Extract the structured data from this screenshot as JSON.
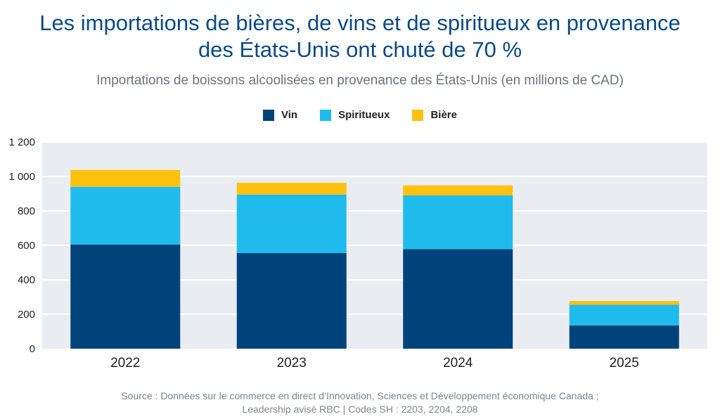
{
  "title_line1": "Les importations de bières, de vins et de spiritueux en provenance",
  "title_line2": "des États-Unis ont chuté de 70 %",
  "subtitle": "Importations de boissons alcoolisées en provenance des États-Unis (en millions de CAD)",
  "source_line1": "Source : Données sur le commerce en direct d’Innovation, Sciences et Développement économique Canada ;",
  "source_line2": "Leadership avisé RBC | Codes SH : 2203, 2204, 2208",
  "colors": {
    "vin": "#00437a",
    "spiritueux": "#20bbed",
    "biere": "#fec20e",
    "plot_bg": "#e9edf1",
    "grid": "#ffffff"
  },
  "chart_data": {
    "type": "bar",
    "stacked": true,
    "categories": [
      "2022",
      "2023",
      "2024",
      "2025"
    ],
    "series": [
      {
        "name": "Vin",
        "values": [
          605,
          555,
          578,
          135
        ]
      },
      {
        "name": "Spiritueux",
        "values": [
          335,
          340,
          312,
          120
        ]
      },
      {
        "name": "Bière",
        "values": [
          98,
          68,
          58,
          22
        ]
      }
    ],
    "yticks": [
      "0",
      "200",
      "400",
      "600",
      "800",
      "1 000",
      "1 200"
    ],
    "ylim": [
      0,
      1200
    ],
    "grid": true,
    "legend": "top-center"
  }
}
